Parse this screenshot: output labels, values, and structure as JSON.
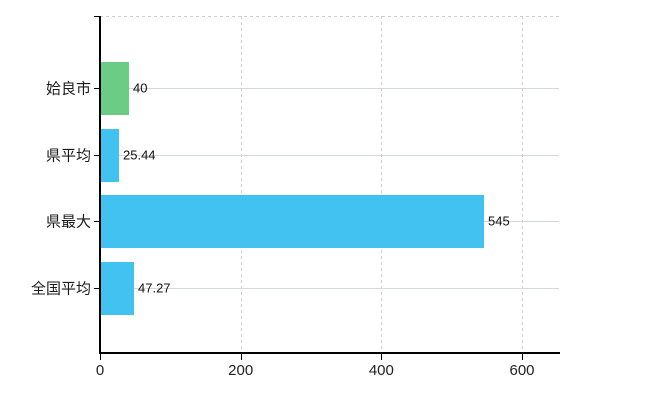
{
  "chart_data": {
    "type": "bar",
    "orientation": "horizontal",
    "title": "",
    "xlabel": "",
    "ylabel": "",
    "categories": [
      "姶良市",
      "県平均",
      "県最大",
      "全国平均"
    ],
    "values": [
      40,
      25.44,
      545,
      47.27
    ],
    "value_labels": [
      "40",
      "25.44",
      "545",
      "47.27"
    ],
    "bar_colors": [
      "#6CCC86",
      "#42C2F0",
      "#42C2F0",
      "#42C2F0"
    ],
    "x_ticks": [
      0,
      200,
      400,
      600
    ],
    "x_tick_labels": [
      "0",
      "200",
      "400",
      "600"
    ],
    "xlim": [
      0,
      653
    ],
    "grid": true,
    "legend": null
  },
  "colors": {
    "bar_blue": "#42C2F0",
    "bar_green": "#6CCC86",
    "grid_horizontal": "#d3d9d3",
    "grid_vertical": "#d2ced4",
    "axis": "#000000",
    "tick_label": "#222222",
    "background": "#ffffff"
  }
}
